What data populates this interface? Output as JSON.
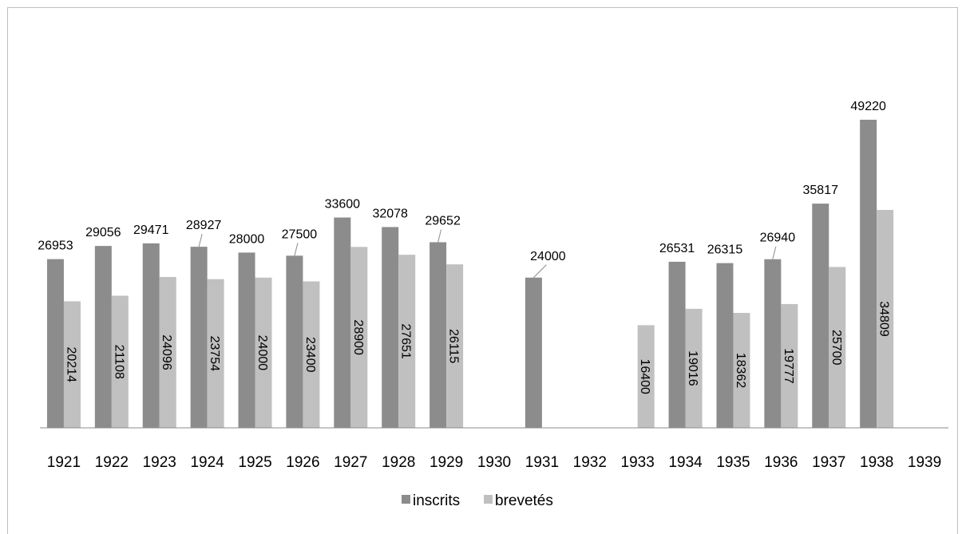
{
  "chart_data": {
    "type": "bar",
    "categories": [
      "1921",
      "1922",
      "1923",
      "1924",
      "1925",
      "1926",
      "1927",
      "1928",
      "1929",
      "1930",
      "1931",
      "1932",
      "1933",
      "1934",
      "1935",
      "1936",
      "1937",
      "1938",
      "1939"
    ],
    "series": [
      {
        "name": "inscrits",
        "color": "#8c8c8c",
        "values": [
          26953,
          29056,
          29471,
          28927,
          28000,
          27500,
          33600,
          32078,
          29652,
          null,
          24000,
          null,
          null,
          26531,
          26315,
          26940,
          35817,
          49220,
          null
        ]
      },
      {
        "name": "brevetés",
        "color": "#c0c0c0",
        "values": [
          20214,
          21108,
          24096,
          23754,
          24000,
          23400,
          28900,
          27651,
          26115,
          null,
          null,
          null,
          16400,
          19016,
          18362,
          19777,
          25700,
          34809,
          null
        ]
      }
    ],
    "ylim": [
      0,
      52500
    ],
    "grid": false,
    "legend": "bottom",
    "axis_color": "#8c8c8c"
  }
}
